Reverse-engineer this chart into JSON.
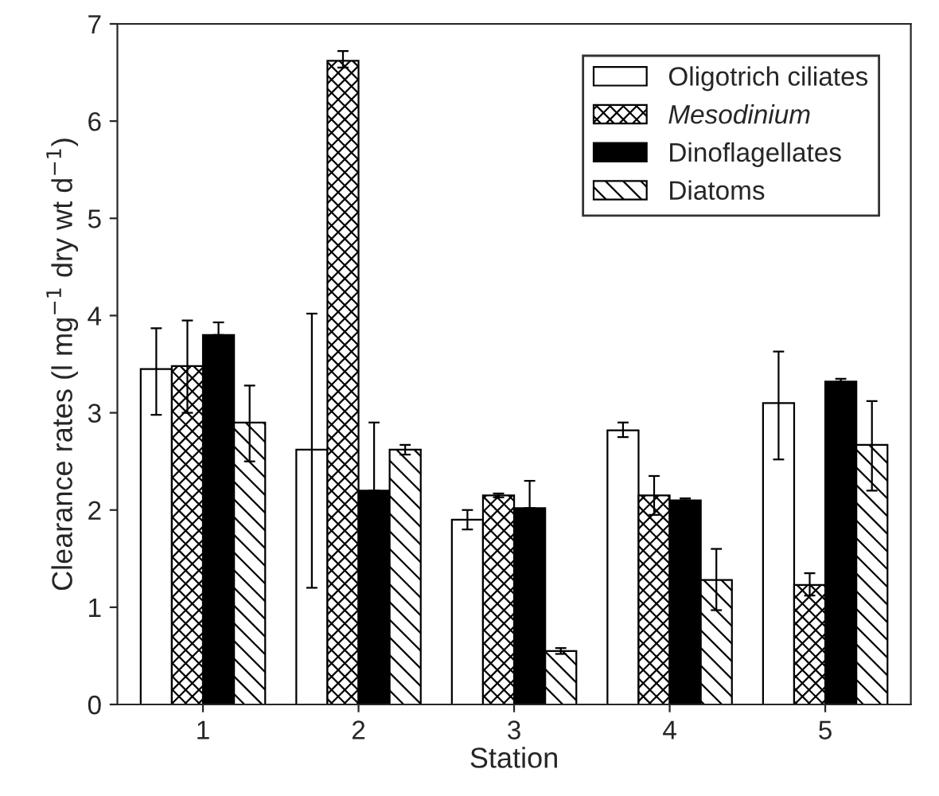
{
  "chart_data": {
    "type": "bar",
    "xlabel": "Station",
    "ylabel": "Clearance rates (l mg$^{−1}$ dry wt d$^{−1}$)",
    "categories": [
      "1",
      "2",
      "3",
      "4",
      "5"
    ],
    "series": [
      {
        "name": "Oligotrich ciliates",
        "color": "#ffffff",
        "values": [
          3.45,
          2.62,
          1.9,
          2.82,
          3.1
        ],
        "errors": [
          [
            2.98,
            3.87
          ],
          [
            1.2,
            4.02
          ],
          [
            1.8,
            2.0
          ],
          [
            2.75,
            2.9
          ],
          [
            2.52,
            3.63
          ]
        ]
      },
      {
        "name": "Mesodinium",
        "color": "#000000",
        "values": [
          3.48,
          6.62,
          2.15,
          2.15,
          1.23
        ],
        "errors": [
          [
            3.0,
            3.95
          ],
          [
            6.55,
            6.72
          ],
          [
            2.13,
            2.17
          ],
          [
            1.95,
            2.35
          ],
          [
            1.12,
            1.35
          ]
        ]
      },
      {
        "name": "Dinoflagellates",
        "color": "#000000",
        "values": [
          3.8,
          2.2,
          2.02,
          2.1,
          3.32
        ],
        "errors": [
          [
            3.8,
            3.93
          ],
          [
            2.2,
            2.9
          ],
          [
            2.02,
            2.3
          ],
          [
            2.1,
            2.12
          ],
          [
            3.32,
            3.35
          ]
        ]
      },
      {
        "name": "Diatoms",
        "color": "#000000",
        "values": [
          2.9,
          2.62,
          0.55,
          1.28,
          2.67
        ],
        "errors": [
          [
            2.5,
            3.28
          ],
          [
            2.57,
            2.67
          ],
          [
            0.52,
            0.58
          ],
          [
            0.97,
            1.6
          ],
          [
            2.2,
            3.12
          ]
        ]
      }
    ],
    "ylim": [
      0,
      7
    ],
    "yticks": [
      0,
      1,
      2,
      3,
      4,
      5,
      6,
      7
    ],
    "grid": false,
    "legend": "top right"
  }
}
